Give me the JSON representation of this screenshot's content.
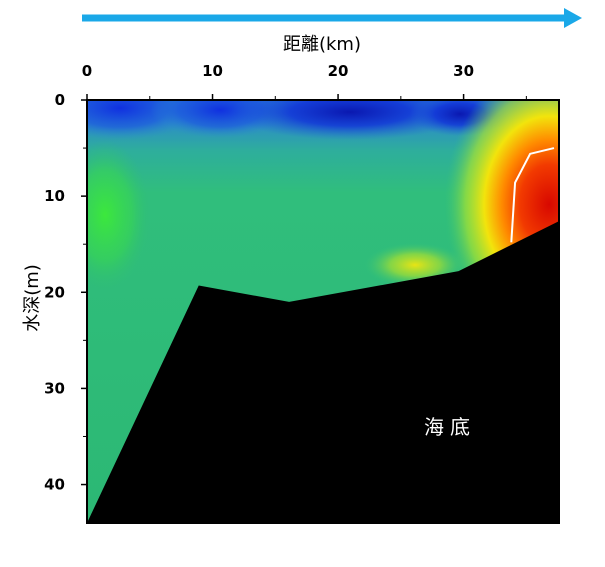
{
  "chart_data": {
    "type": "heatmap",
    "title": "",
    "xlabel": "距離(km)",
    "ylabel": "水深(m)",
    "x_ticks": [
      0,
      10,
      20,
      30
    ],
    "y_ticks": [
      0,
      10,
      20,
      30,
      40
    ],
    "xlim": [
      0,
      37.6
    ],
    "ylim": [
      0,
      44
    ],
    "y_inverted": true,
    "direction_arrow": "right",
    "seafloor_label": "海底",
    "seafloor_profile": {
      "x": [
        0,
        8.9,
        16.1,
        29.6,
        37.6
      ],
      "depth": [
        44,
        19.3,
        21,
        17.8,
        12.6
      ]
    },
    "contour_line": {
      "x": [
        33.8,
        34.1,
        35.3,
        37.2
      ],
      "depth": [
        14.8,
        8.6,
        5.6,
        5.0
      ]
    },
    "colors": {
      "blue_low": "#1040e0",
      "cyan": "#2ab0b0",
      "green": "#2ec873",
      "bright_green": "#3ce23c",
      "yellow": "#f2e60a",
      "orange": "#ff8c00",
      "red": "#e01000",
      "arrow": "#1aa8e8",
      "seafloor": "#000000"
    }
  }
}
